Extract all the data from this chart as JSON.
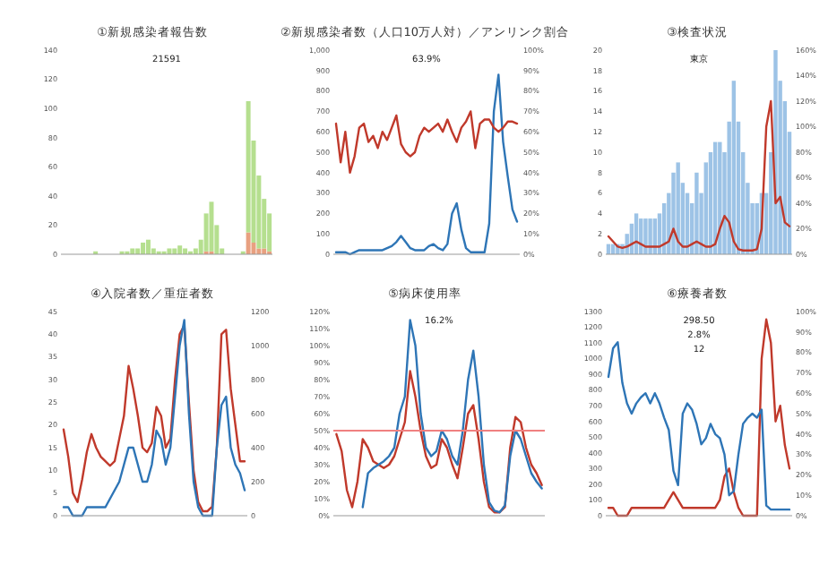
{
  "chart_data": [
    {
      "type": "bar",
      "stacked": true,
      "title": "①新規感染者報告数",
      "categories": [
        null,
        null,
        null,
        null,
        null,
        null,
        null,
        null,
        null,
        null,
        null,
        null,
        null,
        null,
        null,
        null,
        null,
        null,
        null,
        null,
        null,
        null,
        null,
        null,
        null,
        null,
        null,
        null,
        null,
        null,
        null,
        null,
        null,
        null,
        null,
        null,
        null,
        null,
        null,
        null
      ],
      "series": [
        {
          "color": "#e8a080",
          "values": [
            0,
            0,
            0,
            0,
            0,
            0,
            0,
            0,
            0,
            0,
            0,
            0,
            0,
            0,
            0,
            0,
            0,
            0,
            0,
            0,
            0,
            0,
            0,
            0,
            0,
            0,
            0,
            2,
            2,
            0,
            0,
            0,
            0,
            0,
            0,
            15,
            8,
            4,
            4,
            2
          ]
        },
        {
          "color": "#b5df8f",
          "values": [
            0,
            0,
            0,
            0,
            0,
            0,
            2,
            0,
            0,
            0,
            0,
            2,
            2,
            4,
            4,
            8,
            10,
            4,
            2,
            2,
            4,
            4,
            6,
            4,
            2,
            4,
            10,
            26,
            34,
            20,
            4,
            0,
            0,
            0,
            2,
            90,
            70,
            50,
            34,
            26
          ]
        }
      ],
      "ylim": [
        0,
        140
      ],
      "yticks": [
        0,
        20,
        40,
        60,
        80,
        100,
        120,
        140
      ],
      "annotations": [
        "21591"
      ]
    },
    {
      "type": "line",
      "title": "②新規感染者数（人口10万人対）／アンリンク割合",
      "categories": [
        null,
        null,
        null,
        null,
        null,
        null,
        null,
        null,
        null,
        null,
        null,
        null,
        null,
        null,
        null,
        null,
        null,
        null,
        null,
        null,
        null,
        null,
        null,
        null,
        null,
        null,
        null,
        null,
        null,
        null,
        null,
        null,
        null,
        null,
        null,
        null,
        null,
        null,
        null,
        null
      ],
      "series": [
        {
          "color": "#2e75b6",
          "values": [
            10,
            10,
            10,
            0,
            10,
            20,
            20,
            20,
            20,
            20,
            20,
            30,
            40,
            60,
            90,
            60,
            30,
            20,
            20,
            20,
            40,
            50,
            30,
            20,
            50,
            200,
            250,
            120,
            30,
            10,
            10,
            10,
            10,
            150,
            700,
            880,
            550,
            380,
            220,
            160
          ]
        },
        {
          "color": "#c0392b",
          "axis": "y2",
          "values": [
            64,
            45,
            60,
            40,
            48,
            62,
            64,
            55,
            58,
            52,
            60,
            56,
            62,
            68,
            54,
            50,
            48,
            50,
            58,
            62,
            60,
            62,
            64,
            60,
            66,
            60,
            55,
            62,
            65,
            70,
            52,
            64,
            66,
            66,
            62,
            60,
            62,
            65,
            65,
            64
          ]
        }
      ],
      "ylim": [
        0,
        1000
      ],
      "yticks": [
        0,
        100,
        200,
        300,
        400,
        500,
        600,
        700,
        800,
        900,
        {
          "value": 1000,
          "label": "1,000"
        }
      ],
      "y2lim": [
        0,
        100
      ],
      "y2ticks": [
        {
          "value": 0,
          "label": "0%"
        },
        {
          "value": 10,
          "label": "10%"
        },
        {
          "value": 20,
          "label": "20%"
        },
        {
          "value": 30,
          "label": "30%"
        },
        {
          "value": 40,
          "label": "40%"
        },
        {
          "value": 50,
          "label": "50%"
        },
        {
          "value": 60,
          "label": "60%"
        },
        {
          "value": 70,
          "label": "70%"
        },
        {
          "value": 80,
          "label": "80%"
        },
        {
          "value": 90,
          "label": "90%"
        },
        {
          "value": 100,
          "label": "100%"
        }
      ],
      "annotations": [
        "63.9%"
      ]
    },
    {
      "type": "bar",
      "title": "③検査状況",
      "categories": [
        null,
        null,
        null,
        null,
        null,
        null,
        null,
        null,
        null,
        null,
        null,
        null,
        null,
        null,
        null,
        null,
        null,
        null,
        null,
        null,
        null,
        null,
        null,
        null,
        null,
        null,
        null,
        null,
        null,
        null,
        null,
        null,
        null,
        null,
        null,
        null,
        null,
        null,
        null,
        null
      ],
      "series": [
        {
          "color": "#9dc3e6",
          "values": [
            1,
            1,
            1,
            1,
            2,
            3,
            4,
            3.5,
            3.5,
            3.5,
            3.5,
            4,
            5,
            6,
            8,
            9,
            7,
            6,
            5,
            8,
            6,
            9,
            10,
            11,
            11,
            10,
            13,
            17,
            13,
            10,
            7,
            5,
            5,
            6,
            6,
            10,
            20,
            17,
            15,
            12
          ]
        },
        {
          "type": "line",
          "color": "#c0392b",
          "axis": "y2",
          "values": [
            14,
            10,
            6,
            5,
            6,
            8,
            10,
            8,
            6,
            6,
            6,
            6,
            8,
            10,
            20,
            10,
            6,
            6,
            8,
            10,
            8,
            6,
            6,
            8,
            20,
            30,
            25,
            10,
            4,
            3,
            3,
            3,
            4,
            20,
            100,
            120,
            40,
            45,
            25,
            22
          ]
        }
      ],
      "ylim": [
        0,
        20
      ],
      "yticks": [
        0,
        2,
        4,
        6,
        8,
        10,
        12,
        14,
        16,
        18,
        20
      ],
      "y2lim": [
        0,
        160
      ],
      "y2ticks": [
        {
          "value": 0,
          "label": "0%"
        },
        {
          "value": 20,
          "label": "20%"
        },
        {
          "value": 40,
          "label": "40%"
        },
        {
          "value": 60,
          "label": "60%"
        },
        {
          "value": 80,
          "label": "80%"
        },
        {
          "value": 100,
          "label": "100%"
        },
        {
          "value": 120,
          "label": "120%"
        },
        {
          "value": 140,
          "label": "140%"
        },
        {
          "value": 160,
          "label": "160%"
        }
      ],
      "annotations": [
        "東京"
      ]
    },
    {
      "type": "line",
      "title": "④入院者数／重症者数",
      "categories": [
        null,
        null,
        null,
        null,
        null,
        null,
        null,
        null,
        null,
        null,
        null,
        null,
        null,
        null,
        null,
        null,
        null,
        null,
        null,
        null,
        null,
        null,
        null,
        null,
        null,
        null,
        null,
        null,
        null,
        null,
        null,
        null,
        null,
        null,
        null,
        null,
        null,
        null,
        null,
        null
      ],
      "series": [
        {
          "color": "#c0392b",
          "values": [
            19,
            13,
            5,
            3,
            8,
            14,
            18,
            15,
            13,
            12,
            11,
            12,
            17,
            22,
            33,
            28,
            22,
            15,
            14,
            16,
            24,
            22,
            15,
            17,
            30,
            40,
            42,
            25,
            10,
            3,
            1,
            1,
            2,
            15,
            40,
            41,
            28,
            20,
            12,
            12
          ]
        },
        {
          "color": "#2e75b6",
          "axis": "y2",
          "values": [
            50,
            50,
            0,
            0,
            0,
            50,
            50,
            50,
            50,
            50,
            100,
            150,
            200,
            300,
            400,
            400,
            300,
            200,
            200,
            300,
            500,
            450,
            300,
            400,
            700,
            1000,
            1150,
            600,
            200,
            50,
            0,
            0,
            0,
            400,
            650,
            700,
            400,
            300,
            250,
            150
          ]
        }
      ],
      "ylim": [
        0,
        45
      ],
      "yticks": [
        0,
        5,
        10,
        15,
        20,
        25,
        30,
        35,
        40,
        45
      ],
      "y2lim": [
        0,
        1200
      ],
      "y2ticks": [
        0,
        200,
        400,
        600,
        800,
        1000,
        1200
      ]
    },
    {
      "type": "line",
      "title": "⑤病床使用率",
      "categories": [
        null,
        null,
        null,
        null,
        null,
        null,
        null,
        null,
        null,
        null,
        null,
        null,
        null,
        null,
        null,
        null,
        null,
        null,
        null,
        null,
        null,
        null,
        null,
        null,
        null,
        null,
        null,
        null,
        null,
        null,
        null,
        null,
        null,
        null,
        null,
        null,
        null,
        null,
        null,
        null
      ],
      "series": [
        {
          "color": "#c0392b",
          "values": [
            48,
            38,
            15,
            5,
            20,
            45,
            40,
            32,
            30,
            28,
            30,
            35,
            45,
            55,
            85,
            70,
            50,
            35,
            28,
            30,
            45,
            40,
            30,
            22,
            40,
            60,
            65,
            45,
            20,
            5,
            2,
            2,
            5,
            40,
            58,
            55,
            40,
            30,
            25,
            18
          ]
        },
        {
          "color": "#2e75b6",
          "values": [
            null,
            null,
            null,
            null,
            null,
            5,
            25,
            28,
            30,
            32,
            35,
            40,
            60,
            70,
            115,
            100,
            60,
            40,
            35,
            38,
            50,
            45,
            35,
            30,
            50,
            80,
            97,
            70,
            30,
            8,
            3,
            2,
            6,
            35,
            50,
            45,
            35,
            25,
            20,
            16
          ]
        }
      ],
      "ylim": [
        0,
        120
      ],
      "yticks": [
        {
          "value": 0,
          "label": "0%"
        },
        {
          "value": 10,
          "label": "10%"
        },
        {
          "value": 20,
          "label": "20%"
        },
        {
          "value": 30,
          "label": "30%"
        },
        {
          "value": 40,
          "label": "40%"
        },
        {
          "value": 50,
          "label": "50%"
        },
        {
          "value": 60,
          "label": "60%"
        },
        {
          "value": 70,
          "label": "70%"
        },
        {
          "value": 80,
          "label": "80%"
        },
        {
          "value": 90,
          "label": "90%"
        },
        {
          "value": 100,
          "label": "100%"
        },
        {
          "value": 110,
          "label": "110%"
        },
        {
          "value": 120,
          "label": "120%"
        }
      ],
      "ref_lines": [
        {
          "axis": "y",
          "value": 50,
          "color": "#f08080"
        }
      ],
      "annotations": [
        "16.2%"
      ]
    },
    {
      "type": "line",
      "title": "⑥療養者数",
      "categories": [
        null,
        null,
        null,
        null,
        null,
        null,
        null,
        null,
        null,
        null,
        null,
        null,
        null,
        null,
        null,
        null,
        null,
        null,
        null,
        null,
        null,
        null,
        null,
        null,
        null,
        null,
        null,
        null,
        null,
        null,
        null,
        null,
        null,
        null,
        null,
        null,
        null,
        null,
        null,
        null
      ],
      "series": [
        {
          "color": "#c0392b",
          "values": [
            50,
            50,
            0,
            0,
            0,
            50,
            50,
            50,
            50,
            50,
            50,
            50,
            50,
            100,
            150,
            100,
            50,
            50,
            50,
            50,
            50,
            50,
            50,
            50,
            100,
            250,
            300,
            150,
            50,
            0,
            0,
            0,
            0,
            1000,
            1250,
            1100,
            600,
            700,
            450,
            300
          ]
        },
        {
          "color": "#2e75b6",
          "axis": "y2",
          "values": [
            68,
            82,
            85,
            65,
            55,
            50,
            55,
            58,
            60,
            55,
            60,
            55,
            48,
            42,
            22,
            15,
            50,
            55,
            52,
            45,
            35,
            38,
            45,
            40,
            38,
            30,
            10,
            12,
            30,
            45,
            48,
            50,
            48,
            52,
            5,
            3,
            3,
            3,
            3,
            3
          ]
        }
      ],
      "ylim": [
        0,
        1300
      ],
      "yticks": [
        0,
        100,
        200,
        300,
        400,
        500,
        600,
        700,
        800,
        900,
        1000,
        1100,
        1200,
        1300
      ],
      "y2lim": [
        0,
        100
      ],
      "y2ticks": [
        {
          "value": 0,
          "label": "0%"
        },
        {
          "value": 10,
          "label": "10%"
        },
        {
          "value": 20,
          "label": "20%"
        },
        {
          "value": 30,
          "label": "30%"
        },
        {
          "value": 40,
          "label": "40%"
        },
        {
          "value": 50,
          "label": "50%"
        },
        {
          "value": 60,
          "label": "60%"
        },
        {
          "value": 70,
          "label": "70%"
        },
        {
          "value": 80,
          "label": "80%"
        },
        {
          "value": 90,
          "label": "90%"
        },
        {
          "value": 100,
          "label": "100%"
        }
      ],
      "annotations": [
        "298.50",
        "2.8%",
        "12"
      ]
    }
  ]
}
